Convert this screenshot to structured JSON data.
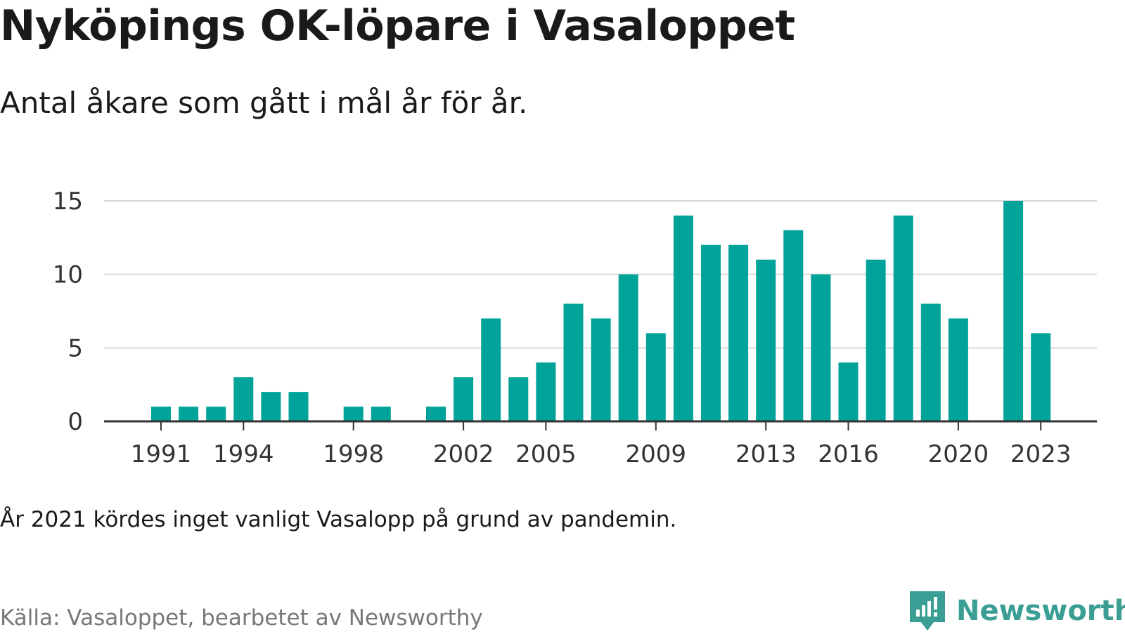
{
  "title": "Nyköpings OK-löpare i Vasaloppet",
  "subtitle": "Antal åkare som gått i mål år för år.",
  "note": "År 2021 kördes inget vanligt Vasalopp på grund av pandemin.",
  "source": "Källa: Vasaloppet, bearbetet av Newsworthy",
  "brand": {
    "name": "Newsworthy",
    "icon": "newsworthy-logo-icon",
    "color": "#3a9e94"
  },
  "colors": {
    "bar": "#00a39a",
    "grid": "#d9d9d9",
    "axis": "#333333"
  },
  "chart_data": {
    "type": "bar",
    "x": [
      1991,
      1992,
      1993,
      1994,
      1995,
      1996,
      1997,
      1998,
      1999,
      2000,
      2001,
      2002,
      2003,
      2004,
      2005,
      2006,
      2007,
      2008,
      2009,
      2010,
      2011,
      2012,
      2013,
      2014,
      2015,
      2016,
      2017,
      2018,
      2019,
      2020,
      2021,
      2022,
      2023
    ],
    "values": [
      1,
      1,
      1,
      3,
      2,
      2,
      0,
      1,
      1,
      0,
      1,
      3,
      7,
      3,
      4,
      8,
      7,
      10,
      6,
      14,
      12,
      12,
      11,
      13,
      10,
      4,
      11,
      14,
      8,
      7,
      0,
      15,
      6
    ],
    "xticks": [
      "1991",
      "1994",
      "1998",
      "2002",
      "2005",
      "2009",
      "2013",
      "2016",
      "2020",
      "2023"
    ],
    "yticks": [
      "0",
      "5",
      "10",
      "15"
    ],
    "ylim": [
      0,
      15
    ],
    "grid": true,
    "legend": "none"
  }
}
